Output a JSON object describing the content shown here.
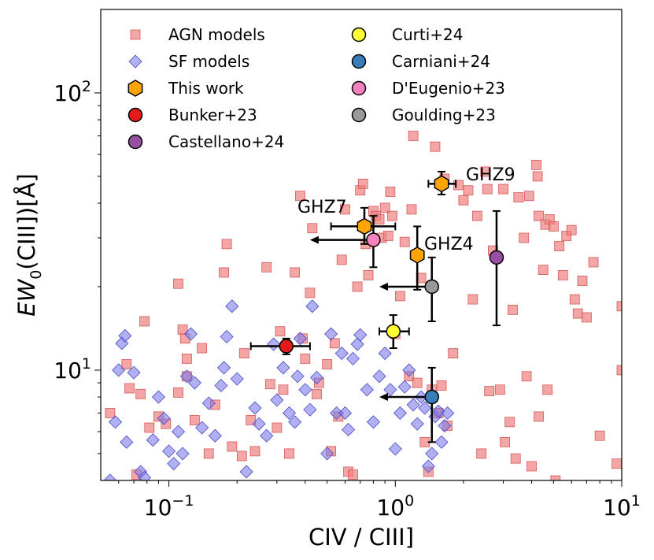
{
  "chart_data": {
    "type": "scatter",
    "xscale": "log",
    "yscale": "log",
    "xlim": [
      0.05,
      10
    ],
    "ylim": [
      4,
      200
    ],
    "xlabel": "CIV / CIII]",
    "ylabel": "EW0(CIII])[Å]",
    "ylabel_parts": {
      "pre": "EW",
      "sub": "0",
      "post": "(CIII])[Å]"
    },
    "xticks": [
      {
        "value": 0.1,
        "base": "10",
        "exp": "−1"
      },
      {
        "value": 1,
        "base": "10",
        "exp": "0"
      },
      {
        "value": 10,
        "base": "10",
        "exp": "1"
      }
    ],
    "yticks": [
      {
        "value": 10,
        "base": "10",
        "exp": "1"
      },
      {
        "value": 100,
        "base": "10",
        "exp": "2"
      }
    ],
    "legend": {
      "placement": "top-left",
      "entries": [
        {
          "label": "AGN models",
          "marker": "square",
          "color": "#f08080"
        },
        {
          "label": "SF models",
          "marker": "diamond",
          "color": "#7b7bea"
        },
        {
          "label": "This work",
          "marker": "hexagon",
          "color": "#ffa500"
        },
        {
          "label": "Bunker+23",
          "marker": "circle",
          "color": "#e41a1c"
        },
        {
          "label": "Castellano+24",
          "marker": "circle",
          "color": "#984ea3"
        },
        {
          "label": "Curti+24",
          "marker": "circle",
          "color": "#ffff33"
        },
        {
          "label": "Carniani+24",
          "marker": "circle",
          "color": "#377eb8"
        },
        {
          "label": "D'Eugenio+23",
          "marker": "circle",
          "color": "#f781bf"
        },
        {
          "label": "Goulding+23",
          "marker": "circle",
          "color": "#999999"
        }
      ]
    },
    "agn_models": [
      [
        0.055,
        7.0
      ],
      [
        0.065,
        10.5
      ],
      [
        0.067,
        8.6
      ],
      [
        0.072,
        4.2
      ],
      [
        0.075,
        8.2
      ],
      [
        0.078,
        15.0
      ],
      [
        0.082,
        6.2
      ],
      [
        0.09,
        6.8
      ],
      [
        0.097,
        6.4
      ],
      [
        0.11,
        20.5
      ],
      [
        0.11,
        8.3
      ],
      [
        0.115,
        14.0
      ],
      [
        0.118,
        13.0
      ],
      [
        0.12,
        11.0
      ],
      [
        0.12,
        9.5
      ],
      [
        0.13,
        6.6
      ],
      [
        0.14,
        12.0
      ],
      [
        0.15,
        5.0
      ],
      [
        0.16,
        7.5
      ],
      [
        0.175,
        22.5
      ],
      [
        0.18,
        28.5
      ],
      [
        0.19,
        5.3
      ],
      [
        0.21,
        4.9
      ],
      [
        0.215,
        11.5
      ],
      [
        0.23,
        6.6
      ],
      [
        0.24,
        5.1
      ],
      [
        0.27,
        23.5
      ],
      [
        0.28,
        8.9
      ],
      [
        0.3,
        6.2
      ],
      [
        0.31,
        13.8
      ],
      [
        0.32,
        8.5
      ],
      [
        0.34,
        5.0
      ],
      [
        0.36,
        22.5
      ],
      [
        0.38,
        42.5
      ],
      [
        0.39,
        13.0
      ],
      [
        0.4,
        11.0
      ],
      [
        0.42,
        19.0
      ],
      [
        0.43,
        32.5
      ],
      [
        0.45,
        8.2
      ],
      [
        0.46,
        9.0
      ],
      [
        0.5,
        10.5
      ],
      [
        0.52,
        5.1
      ],
      [
        0.54,
        12.5
      ],
      [
        0.56,
        6.8
      ],
      [
        0.58,
        25.0
      ],
      [
        0.6,
        38.0
      ],
      [
        0.62,
        4.3
      ],
      [
        0.65,
        4.2
      ],
      [
        0.68,
        20.0
      ],
      [
        0.7,
        44.5
      ],
      [
        0.72,
        47.0
      ],
      [
        0.74,
        28.5
      ],
      [
        0.76,
        22.0
      ],
      [
        0.8,
        37.5
      ],
      [
        0.82,
        36.0
      ],
      [
        0.85,
        35.0
      ],
      [
        0.87,
        30.0
      ],
      [
        0.9,
        38.5
      ],
      [
        0.93,
        30.5
      ],
      [
        0.95,
        44.0
      ],
      [
        0.97,
        36.0
      ],
      [
        1.0,
        13.5
      ],
      [
        1.05,
        18.5
      ],
      [
        1.1,
        29.0
      ],
      [
        1.15,
        9.5
      ],
      [
        1.18,
        38.0
      ],
      [
        1.2,
        70.0
      ],
      [
        1.25,
        9.0
      ],
      [
        1.3,
        21.5
      ],
      [
        1.35,
        5.5
      ],
      [
        1.4,
        4.3
      ],
      [
        1.45,
        8.5
      ],
      [
        1.5,
        64.0
      ],
      [
        1.55,
        7.0
      ],
      [
        1.6,
        8.8
      ],
      [
        1.65,
        49.0
      ],
      [
        1.7,
        6.3
      ],
      [
        1.8,
        11.5
      ],
      [
        1.9,
        46.5
      ],
      [
        2.0,
        41.0
      ],
      [
        2.1,
        44.5
      ],
      [
        2.2,
        18.0
      ],
      [
        2.3,
        36.0
      ],
      [
        2.4,
        5.0
      ],
      [
        2.5,
        52.0
      ],
      [
        2.55,
        45.0
      ],
      [
        2.6,
        8.4
      ],
      [
        2.7,
        27.0
      ],
      [
        2.9,
        8.5
      ],
      [
        3.0,
        45.0
      ],
      [
        3.05,
        5.5
      ],
      [
        3.2,
        6.5
      ],
      [
        3.3,
        16.5
      ],
      [
        3.5,
        42.0
      ],
      [
        3.7,
        30.0
      ],
      [
        3.8,
        9.5
      ],
      [
        3.9,
        42.5
      ],
      [
        4.0,
        4.5
      ],
      [
        4.2,
        55.0
      ],
      [
        4.25,
        50.0
      ],
      [
        4.3,
        36.0
      ],
      [
        4.5,
        23.0
      ],
      [
        4.6,
        33.5
      ],
      [
        4.7,
        8.5
      ],
      [
        4.8,
        35.0
      ],
      [
        5.0,
        33.0
      ],
      [
        5.1,
        4.0
      ],
      [
        5.3,
        28.0
      ],
      [
        5.5,
        22.0
      ],
      [
        5.7,
        30.5
      ],
      [
        6.0,
        32.0
      ],
      [
        6.2,
        18.0
      ],
      [
        6.4,
        16.0
      ],
      [
        6.7,
        21.0
      ],
      [
        7.0,
        15.5
      ],
      [
        7.5,
        24.5
      ],
      [
        8.0,
        5.8
      ],
      [
        9.5,
        4.6
      ],
      [
        10.0,
        10.0
      ],
      [
        10.0,
        17.0
      ],
      [
        4.3,
        6.8
      ],
      [
        3.4,
        4.8
      ]
    ],
    "sf_models": [
      [
        0.055,
        4.0
      ],
      [
        0.058,
        6.5
      ],
      [
        0.06,
        10.0
      ],
      [
        0.062,
        12.5
      ],
      [
        0.064,
        13.3
      ],
      [
        0.065,
        5.5
      ],
      [
        0.07,
        9.8
      ],
      [
        0.075,
        4.3
      ],
      [
        0.078,
        4.1
      ],
      [
        0.085,
        5.6
      ],
      [
        0.09,
        8.0
      ],
      [
        0.095,
        6.7
      ],
      [
        0.1,
        5.1
      ],
      [
        0.105,
        4.6
      ],
      [
        0.11,
        6.0
      ],
      [
        0.115,
        5.0
      ],
      [
        0.12,
        9.5
      ],
      [
        0.125,
        13.5
      ],
      [
        0.13,
        9.0
      ],
      [
        0.14,
        6.2
      ],
      [
        0.15,
        7.6
      ],
      [
        0.16,
        5.8
      ],
      [
        0.17,
        8.8
      ],
      [
        0.175,
        10.2
      ],
      [
        0.18,
        13.2
      ],
      [
        0.19,
        17.0
      ],
      [
        0.2,
        9.3
      ],
      [
        0.22,
        4.3
      ],
      [
        0.24,
        7.3
      ],
      [
        0.25,
        6.4
      ],
      [
        0.27,
        5.8
      ],
      [
        0.29,
        12.4
      ],
      [
        0.3,
        7.8
      ],
      [
        0.32,
        10.2
      ],
      [
        0.34,
        7.0
      ],
      [
        0.36,
        6.5
      ],
      [
        0.37,
        9.5
      ],
      [
        0.38,
        13.0
      ],
      [
        0.4,
        8.5
      ],
      [
        0.42,
        7.2
      ],
      [
        0.43,
        17.0
      ],
      [
        0.45,
        9.4
      ],
      [
        0.5,
        5.0
      ],
      [
        0.52,
        13.5
      ],
      [
        0.55,
        7.0
      ],
      [
        0.58,
        11.5
      ],
      [
        0.6,
        7.0
      ],
      [
        0.62,
        6.1
      ],
      [
        0.65,
        11.0
      ],
      [
        0.68,
        12.4
      ],
      [
        0.7,
        13.4
      ],
      [
        0.75,
        8.5
      ],
      [
        0.8,
        6.5
      ],
      [
        0.85,
        9.5
      ],
      [
        0.9,
        11.5
      ],
      [
        0.95,
        8.5
      ],
      [
        1.0,
        5.2
      ],
      [
        1.05,
        7.0
      ],
      [
        1.1,
        8.7
      ],
      [
        1.15,
        10.0
      ],
      [
        1.2,
        7.5
      ],
      [
        1.25,
        6.4
      ],
      [
        1.3,
        8.0
      ],
      [
        1.35,
        7.3
      ],
      [
        1.4,
        4.5
      ],
      [
        1.45,
        5.0
      ],
      [
        1.5,
        6.8
      ],
      [
        1.55,
        7.1
      ],
      [
        1.6,
        5.5
      ],
      [
        1.65,
        6.3
      ],
      [
        1.7,
        7.0
      ]
    ],
    "this_work": [
      {
        "name": "GHZ9",
        "x": 1.6,
        "y": 47.0,
        "xerr": [
          1.4,
          1.85
        ],
        "yerr": [
          43,
          52
        ]
      },
      {
        "name": "GHZ7",
        "x": 0.73,
        "y": 33.0,
        "xerr": [
          0.52,
          1.0
        ],
        "yerr": [
          28.5,
          38.5
        ]
      },
      {
        "name": "GHZ4",
        "x": 1.25,
        "y": 26.0,
        "xerr": [
          1.22,
          1.32
        ],
        "yerr": [
          19.5,
          33.0
        ]
      }
    ],
    "literature": [
      {
        "source": "Bunker+23",
        "x": 0.33,
        "y": 12.2,
        "xerr": [
          0.23,
          0.42
        ],
        "yerr": [
          11.4,
          13.0
        ],
        "upper_limit_x": false
      },
      {
        "source": "Castellano+24",
        "x": 2.8,
        "y": 25.5,
        "xerr": [
          2.8,
          2.8
        ],
        "yerr": [
          14.5,
          37.5
        ],
        "upper_limit_x": false
      },
      {
        "source": "Curti+24",
        "x": 0.98,
        "y": 13.8,
        "xerr": [
          0.85,
          1.15
        ],
        "yerr": [
          12.0,
          15.8
        ],
        "upper_limit_x": false
      },
      {
        "source": "Carniani+24",
        "x": 1.45,
        "y": 8.0,
        "xerr": [
          1.45,
          1.45
        ],
        "yerr": [
          5.5,
          10.2
        ],
        "upper_limit_x": true,
        "arrow_to": 0.85
      },
      {
        "source": "D'Eugenio+23",
        "x": 0.8,
        "y": 29.5,
        "xerr": [
          0.8,
          0.8
        ],
        "yerr": [
          23.5,
          36.0
        ],
        "upper_limit_x": true,
        "arrow_to": 0.42
      },
      {
        "source": "Goulding+23",
        "x": 1.45,
        "y": 20.0,
        "xerr": [
          1.45,
          1.45
        ],
        "yerr": [
          15.0,
          25.5
        ],
        "upper_limit_x": true,
        "arrow_to": 0.85
      }
    ]
  }
}
